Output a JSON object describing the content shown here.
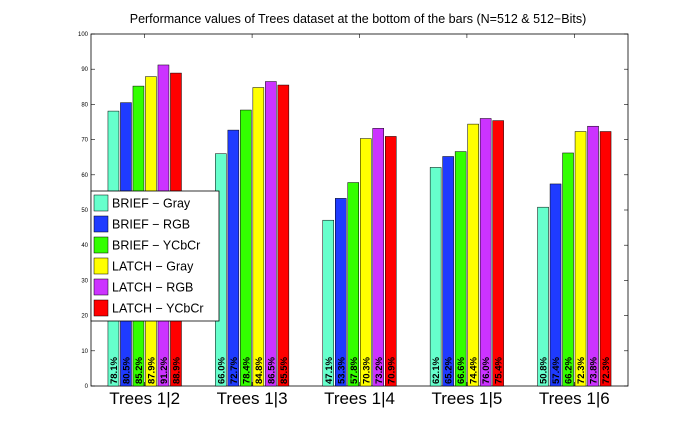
{
  "chart_data": {
    "type": "bar",
    "title": "Performance values of Trees dataset at the bottom of the bars (N=512 & 512−Bits)",
    "xlabel": "",
    "ylabel": "",
    "ylim": [
      0,
      100
    ],
    "yticks": [
      0,
      10,
      20,
      30,
      40,
      50,
      60,
      70,
      80,
      90,
      100
    ],
    "grid": false,
    "legend_position": "left-middle",
    "categories": [
      "Trees 1|2",
      "Trees 1|3",
      "Trees 1|4",
      "Trees 1|5",
      "Trees 1|6"
    ],
    "series": [
      {
        "name": "BRIEF − Gray",
        "color": "#66ffcc",
        "values": [
          78.1,
          66.0,
          47.1,
          62.1,
          50.8
        ],
        "labels": [
          "78.1%",
          "66.0%",
          "47.1%",
          "62.1%",
          "50.8%"
        ]
      },
      {
        "name": "BRIEF − RGB",
        "color": "#1f3bff",
        "values": [
          80.5,
          72.7,
          53.3,
          65.2,
          57.4
        ],
        "labels": [
          "80.5%",
          "72.7%",
          "53.3%",
          "65.2%",
          "57.4%"
        ]
      },
      {
        "name": "BRIEF − YCbCr",
        "color": "#33ff00",
        "values": [
          85.2,
          78.4,
          57.8,
          66.6,
          66.2
        ],
        "labels": [
          "85.2%",
          "78.4%",
          "57.8%",
          "66.6%",
          "66.2%"
        ]
      },
      {
        "name": "LATCH − Gray",
        "color": "#ffff00",
        "values": [
          87.9,
          84.8,
          70.3,
          74.4,
          72.3
        ],
        "labels": [
          "87.9%",
          "84.8%",
          "70.3%",
          "74.4%",
          "72.3%"
        ]
      },
      {
        "name": "LATCH − RGB",
        "color": "#cc33ff",
        "values": [
          91.2,
          86.5,
          73.2,
          76.0,
          73.8
        ],
        "labels": [
          "91.2%",
          "86.5%",
          "73.2%",
          "76.0%",
          "73.8%"
        ]
      },
      {
        "name": "LATCH − YCbCr",
        "color": "#ff0000",
        "values": [
          88.9,
          85.5,
          70.9,
          75.4,
          72.3
        ],
        "labels": [
          "88.9%",
          "85.5%",
          "70.9%",
          "75.4%",
          "72.3%"
        ]
      }
    ]
  }
}
